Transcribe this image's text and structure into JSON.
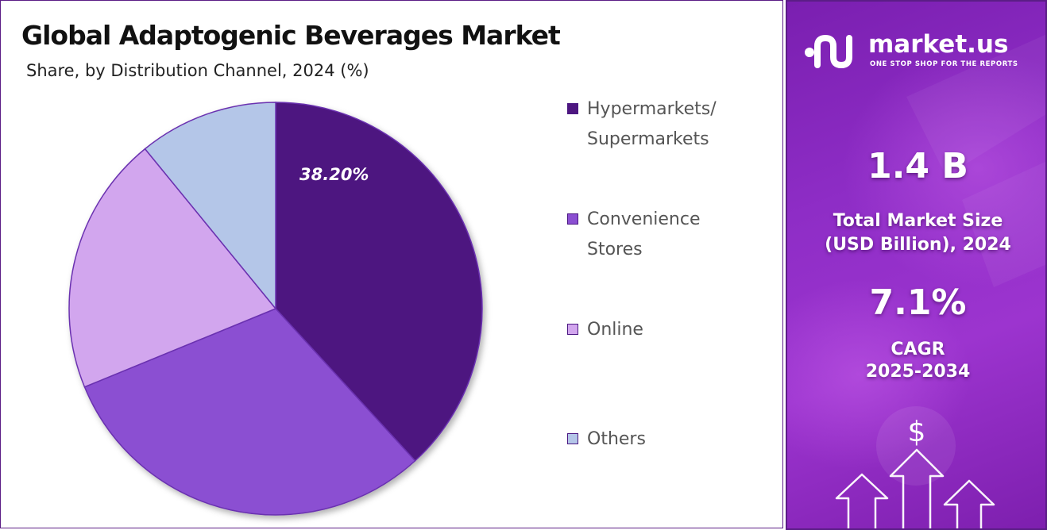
{
  "title": "Global Adaptogenic Beverages Market",
  "subtitle": "Share, by Distribution Channel, 2024 (%)",
  "chart_data": {
    "type": "pie",
    "title": "Global Adaptogenic Beverages Market",
    "subtitle": "Share, by Distribution Channel, 2024 (%)",
    "categories": [
      "Hypermarkets/ Supermarkets",
      "Convenience Stores",
      "Online",
      "Others"
    ],
    "values": [
      38.2,
      30.6,
      20.3,
      10.9
    ],
    "data_labels": [
      "38.20%",
      null,
      null,
      null
    ],
    "colors": [
      "#4e1680",
      "#8b4fd2",
      "#d2a6ee",
      "#b4c6e8"
    ],
    "legend_placement": "right"
  },
  "legend": {
    "items": [
      {
        "lines": [
          "Hypermarkets/",
          "Supermarkets"
        ],
        "color": "#4e1680"
      },
      {
        "lines": [
          "Convenience",
          "Stores"
        ],
        "color": "#8b4fd2"
      },
      {
        "lines": [
          "Online"
        ],
        "color": "#d2a6ee"
      },
      {
        "lines": [
          "Others"
        ],
        "color": "#b4c6e8"
      }
    ]
  },
  "brand": {
    "name": "market.us",
    "tagline": "ONE STOP SHOP FOR THE REPORTS",
    "icon": "market-us-logo-icon"
  },
  "stats": {
    "market_size_value": "1.4 B",
    "market_size_label_line1": "Total Market Size",
    "market_size_label_line2": "(USD Billion), 2024",
    "cagr_value": "7.1%",
    "cagr_label_line1": "CAGR",
    "cagr_label_line2": "2025-2034"
  },
  "decor": {
    "dollar_symbol": "$",
    "icons": [
      "dollar-icon",
      "up-arrow-icon"
    ]
  }
}
